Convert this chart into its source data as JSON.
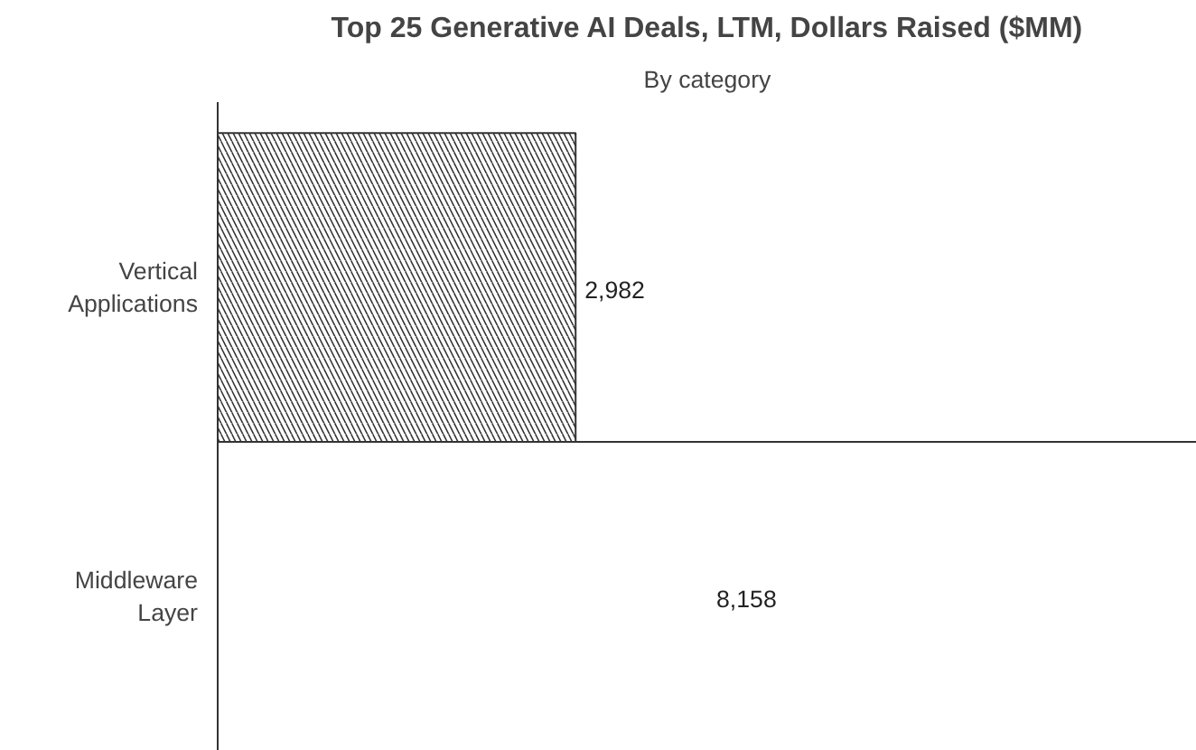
{
  "chart_data": {
    "type": "bar",
    "orientation": "horizontal",
    "title": "Top 25 Generative AI Deals, LTM, Dollars Raised ($MM)",
    "subtitle": "By category",
    "categories": [
      "Vertical Applications",
      "Middleware Layer"
    ],
    "values": [
      2982,
      8158
    ],
    "value_labels": [
      "2,982",
      "8,158"
    ],
    "colors": [
      "#333333",
      "#ffffff"
    ],
    "tick_labels": "y",
    "grid": false
  }
}
